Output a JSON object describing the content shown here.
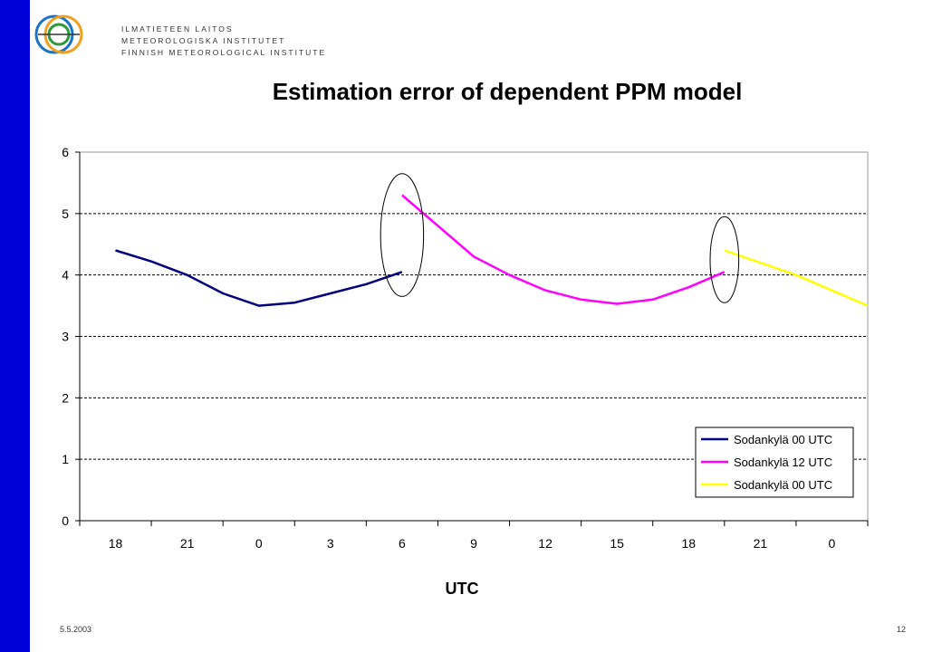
{
  "slide": {
    "logo_lines": [
      "ILMATIETEEN LAITOS",
      "METEOROLOGISKA INSTITUTET",
      "FINNISH METEOROLOGICAL INSTITUTE"
    ],
    "date": "5.5.2003",
    "page": "12",
    "sidebar_color": "#0000d8"
  },
  "chart_data": {
    "type": "line",
    "title": "Estimation error of dependent PPM model",
    "xlabel": "UTC",
    "ylabel": "",
    "categories": [
      "18",
      "21",
      "0",
      "3",
      "6",
      "9",
      "12",
      "15",
      "18",
      "21",
      "0"
    ],
    "ylim": [
      0,
      6
    ],
    "yticks": [
      0,
      1,
      2,
      3,
      4,
      5,
      6
    ],
    "grid": "horizontal dashed",
    "legend_position": "bottom-right",
    "series": [
      {
        "name": "Sodankylä 00 UTC",
        "color": "#000080",
        "points": [
          [
            0,
            4.4
          ],
          [
            0.5,
            4.22
          ],
          [
            1,
            4.0
          ],
          [
            1.5,
            3.7
          ],
          [
            2,
            3.5
          ],
          [
            2.5,
            3.55
          ],
          [
            3,
            3.7
          ],
          [
            3.5,
            3.85
          ],
          [
            4,
            4.05
          ]
        ]
      },
      {
        "name": "Sodankylä 12 UTC",
        "color": "#ff00ff",
        "points": [
          [
            4,
            5.3
          ],
          [
            4.5,
            4.8
          ],
          [
            5,
            4.3
          ],
          [
            5.5,
            4.0
          ],
          [
            6,
            3.75
          ],
          [
            6.5,
            3.6
          ],
          [
            7,
            3.53
          ],
          [
            7.5,
            3.6
          ],
          [
            8,
            3.8
          ],
          [
            8.5,
            4.05
          ]
        ]
      },
      {
        "name": "Sodankylä 00 UTC",
        "color": "#ffff00",
        "points": [
          [
            8.5,
            4.4
          ],
          [
            9.5,
            4.0
          ],
          [
            10.5,
            3.5
          ]
        ]
      }
    ],
    "annotations": [
      {
        "type": "ellipse",
        "cx": 4.0,
        "cy": 4.65,
        "rx": 0.3,
        "ry": 1.0
      },
      {
        "type": "ellipse",
        "cx": 8.5,
        "cy": 4.25,
        "rx": 0.2,
        "ry": 0.7
      }
    ]
  }
}
